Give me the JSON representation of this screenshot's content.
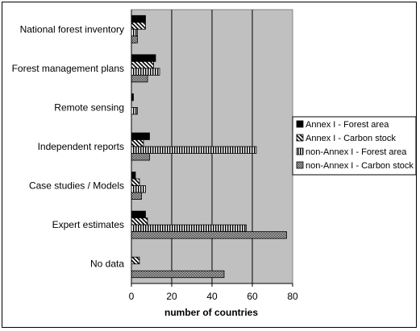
{
  "chart_data": {
    "type": "bar",
    "orientation": "horizontal",
    "xlabel": "number of countries",
    "xlim": [
      0,
      80
    ],
    "xticks": [
      "0",
      "20",
      "40",
      "60",
      "80"
    ],
    "grid": true,
    "legend_position": "right",
    "categories": [
      "National forest inventory",
      "Forest management plans",
      "Remote sensing",
      "Independent reports",
      "Case studies / Models",
      "Expert estimates",
      "No data"
    ],
    "series": [
      {
        "name": "Annex I - Forest area",
        "pattern": "solid",
        "values": [
          7,
          12,
          1,
          9,
          2,
          7,
          0
        ]
      },
      {
        "name": "Annex I - Carbon stock",
        "pattern": "diagonal",
        "values": [
          7,
          11,
          0,
          6,
          4,
          8,
          4
        ]
      },
      {
        "name": "non-Annex I - Forest area",
        "pattern": "vertical",
        "values": [
          3,
          14,
          3,
          62,
          7,
          57,
          0
        ]
      },
      {
        "name": "non-Annex I - Carbon stock",
        "pattern": "checker",
        "values": [
          3,
          8,
          0,
          9,
          5,
          77,
          46
        ]
      }
    ],
    "colors": {
      "plot_bg": "#c0c0c0",
      "bar_fill": "#000000",
      "bar_bg": "#ffffff"
    }
  }
}
